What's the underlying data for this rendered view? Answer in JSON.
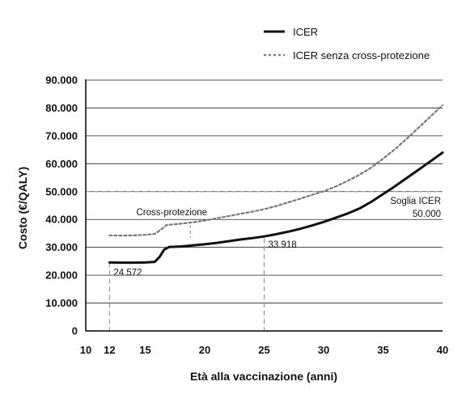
{
  "chart_data": {
    "type": "line",
    "xlabel": "Età alla vaccinazione (anni)",
    "ylabel": "Costo (€/QALY)",
    "xlim": [
      10,
      40
    ],
    "ylim": [
      0,
      90000
    ],
    "xticks": [
      10,
      12,
      15,
      20,
      25,
      30,
      35,
      40
    ],
    "xtick_labels": [
      "10",
      "12",
      "15",
      "20",
      "25",
      "30",
      "35",
      "40"
    ],
    "yticks": [
      0,
      10000,
      20000,
      30000,
      40000,
      50000,
      60000,
      70000,
      80000,
      90000
    ],
    "ytick_labels": [
      "0",
      "10.000",
      "20.000",
      "30.000",
      "40.000",
      "50.000",
      "60.000",
      "70.000",
      "80.000",
      "90.000"
    ],
    "grid": "horizontal",
    "legend_position": "top-right",
    "colors": {
      "icer": "#111111",
      "icer_no_cross": "#777777",
      "threshold": "#999999",
      "guide": "#888888"
    },
    "series": [
      {
        "name": "ICER",
        "style": "solid",
        "x": [
          12,
          13,
          14,
          15,
          15.8,
          16.2,
          16.6,
          17,
          18,
          19,
          20,
          21,
          22,
          23,
          24,
          25,
          26,
          27,
          28,
          29,
          30,
          31,
          32,
          33,
          34,
          35,
          36,
          37,
          38,
          39,
          40
        ],
        "y": [
          24572,
          24500,
          24500,
          24550,
          24800,
          26500,
          29200,
          30100,
          30300,
          30700,
          31100,
          31600,
          32200,
          32800,
          33300,
          33918,
          34700,
          35600,
          36600,
          37800,
          39100,
          40600,
          42100,
          43900,
          46300,
          49100,
          51900,
          54900,
          57900,
          60900,
          64000
        ]
      },
      {
        "name": "ICER senza cross-protezione",
        "style": "dashed",
        "x": [
          12,
          13,
          14,
          15,
          15.8,
          16.3,
          16.8,
          17.5,
          18,
          19,
          20,
          21,
          22,
          23,
          24,
          25,
          26,
          27,
          28,
          29,
          30,
          31,
          32,
          33,
          34,
          35,
          36,
          37,
          38,
          39,
          40
        ],
        "y": [
          34300,
          34200,
          34300,
          34500,
          34800,
          36300,
          38000,
          38300,
          38500,
          39000,
          39600,
          40400,
          41200,
          42000,
          42800,
          43700,
          44800,
          46100,
          47400,
          48800,
          50100,
          51800,
          53800,
          56000,
          58600,
          61800,
          65200,
          69000,
          73000,
          77000,
          81000
        ]
      }
    ],
    "threshold": {
      "y": 50000,
      "label_line1": "Soglia ICER",
      "label_line2": "50.000"
    },
    "annotations": [
      {
        "text": "24.572",
        "x": 12,
        "y": 24572
      },
      {
        "text": "33.918",
        "x": 25,
        "y": 33918
      },
      {
        "text": "Cross-protezione",
        "x": 19,
        "y": 38600
      }
    ]
  }
}
